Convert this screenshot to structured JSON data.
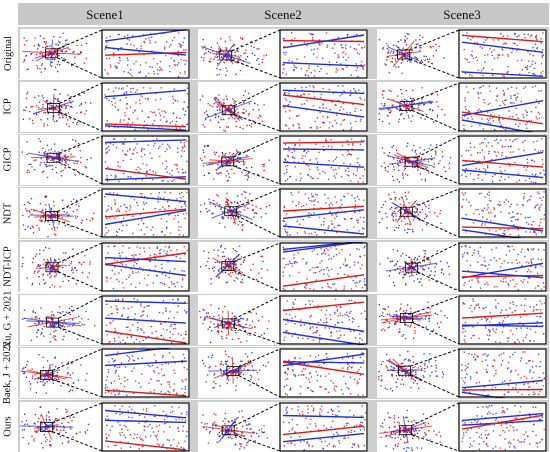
{
  "columns": [
    "Scene1",
    "Scene2",
    "Scene3"
  ],
  "rows": [
    "Original",
    "ICP",
    "GICP",
    "NDT",
    "NDT-ICP",
    "Xu, G + 2021",
    "Baek, J + 2022",
    "Ours"
  ],
  "colors": {
    "target_points": "#2030d8",
    "source_points": "#e01818",
    "band": "#cfcfcf",
    "zoom_box": "#000000"
  }
}
